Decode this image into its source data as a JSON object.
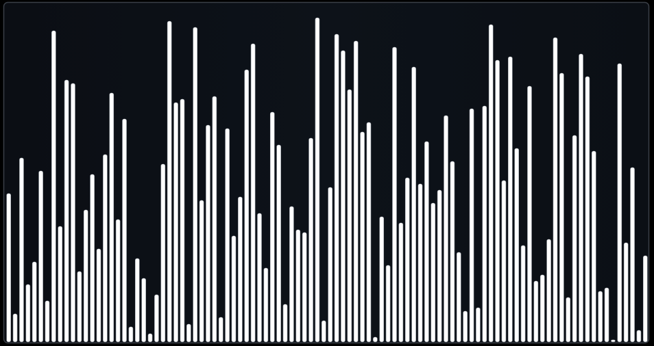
{
  "chart_data": {
    "type": "bar",
    "color": "#ffffff",
    "values": [
      217,
      41,
      269,
      84,
      117,
      250,
      60,
      455,
      169,
      383,
      378,
      103,
      193,
      245,
      136,
      274,
      364,
      179,
      326,
      22,
      122,
      93,
      12,
      69,
      260,
      469,
      350,
      355,
      26,
      460,
      207,
      317,
      359,
      36,
      312,
      155,
      212,
      398,
      436,
      188,
      108,
      336,
      288,
      55,
      198,
      164,
      160,
      298,
      474,
      31,
      226,
      450,
      426,
      369,
      440,
      307,
      321,
      7,
      183,
      112,
      431,
      174,
      240,
      402,
      231,
      293,
      203,
      222,
      331,
      264,
      131,
      45,
      341,
      50,
      345,
      464,
      412,
      236,
      417,
      283,
      141,
      374,
      89,
      98,
      150,
      445,
      393,
      65,
      302,
      421,
      388,
      279,
      74,
      79,
      3,
      407,
      145,
      255,
      17,
      126
    ]
  }
}
